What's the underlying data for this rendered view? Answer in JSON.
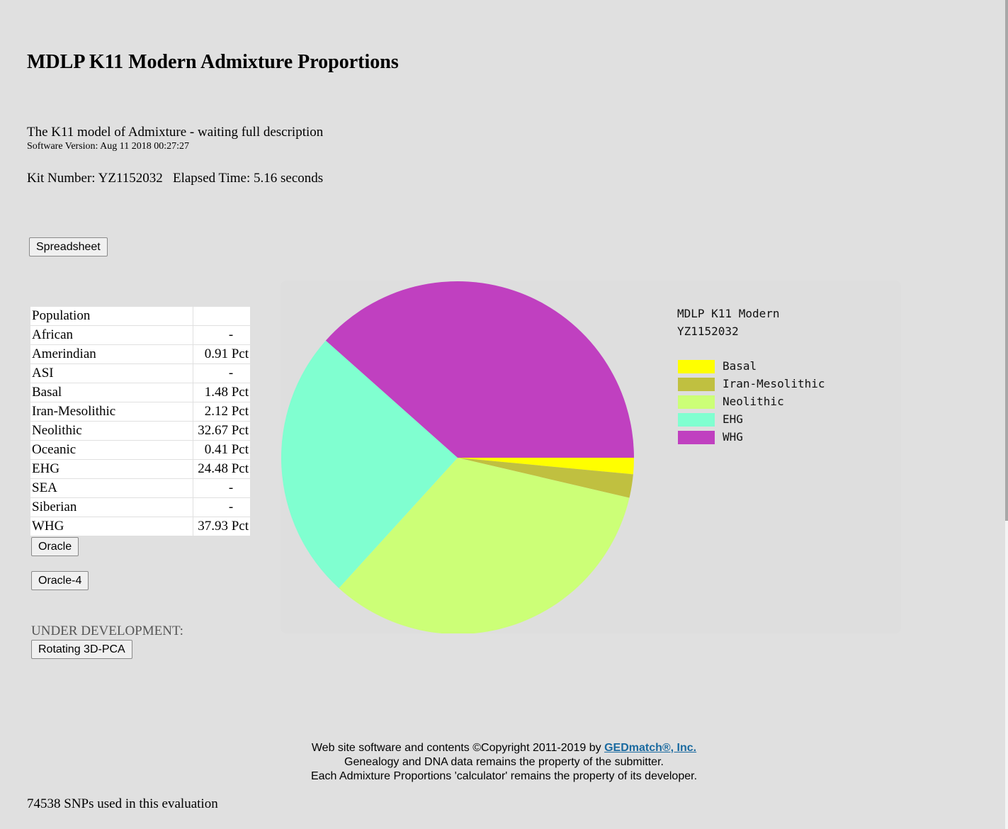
{
  "page": {
    "title": "MDLP K11 Modern Admixture Proportions",
    "description": "The K11 model of Admixture - waiting full description",
    "software_version": "Software Version: Aug 11 2018 00:27:27",
    "kit_line": "Kit Number: YZ1152032   Elapsed Time: 5.16 seconds",
    "spreadsheet_button": "Spreadsheet",
    "oracle_button": "Oracle",
    "oracle4_button": "Oracle-4",
    "under_development": "UNDER DEVELOPMENT:",
    "pca_button": "Rotating 3D-PCA",
    "snps_line": "74538 SNPs used in this evaluation"
  },
  "table": {
    "header": [
      "Population",
      ""
    ],
    "rows": [
      {
        "name": "African",
        "value": "-"
      },
      {
        "name": "Amerindian",
        "value": "0.91 Pct"
      },
      {
        "name": "ASI",
        "value": "-"
      },
      {
        "name": "Basal",
        "value": "1.48 Pct"
      },
      {
        "name": "Iran-Mesolithic",
        "value": "2.12 Pct"
      },
      {
        "name": "Neolithic",
        "value": "32.67 Pct"
      },
      {
        "name": "Oceanic",
        "value": "0.41 Pct"
      },
      {
        "name": "EHG",
        "value": "24.48 Pct"
      },
      {
        "name": "SEA",
        "value": "-"
      },
      {
        "name": "Siberian",
        "value": "-"
      },
      {
        "name": "WHG",
        "value": "37.93 Pct"
      }
    ]
  },
  "chart_data": {
    "type": "pie",
    "title": "MDLP K11 Modern",
    "subtitle": "YZ1152032",
    "legend_position": "right",
    "slices": [
      {
        "label": "Basal",
        "value": 1.48,
        "color": "#ffff00"
      },
      {
        "label": "Iran-Mesolithic",
        "value": 2.12,
        "color": "#c0c040"
      },
      {
        "label": "Neolithic",
        "value": 32.67,
        "color": "#ccff77"
      },
      {
        "label": "EHG",
        "value": 24.48,
        "color": "#80ffd0"
      },
      {
        "label": "WHG",
        "value": 37.93,
        "color": "#c040c0"
      }
    ]
  },
  "footer": {
    "line1_prefix": "Web site software and contents ©Copyright 2011-2019 by ",
    "link_text": "GEDmatch®, Inc.",
    "line2": "Genealogy and DNA data remains the property of the submitter.",
    "line3": "Each Admixture Proportions 'calculator' remains the property of its developer."
  }
}
